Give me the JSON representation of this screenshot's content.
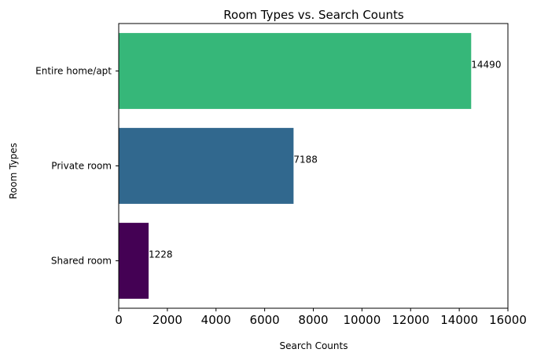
{
  "chart_data": {
    "type": "bar",
    "orientation": "horizontal",
    "title": "Room Types vs. Search Counts",
    "xlabel": "Search Counts",
    "ylabel": "Room Types",
    "xlim": [
      0,
      16000
    ],
    "xticks": [
      0,
      2000,
      4000,
      6000,
      8000,
      10000,
      12000,
      14000,
      16000
    ],
    "grid": false,
    "categories": [
      "Entire home/apt",
      "Private room",
      "Shared room"
    ],
    "values": [
      14490,
      7188,
      1228
    ],
    "data_labels": [
      "14490",
      "7188",
      "1228"
    ],
    "colors": [
      "#36b779",
      "#31688e",
      "#440154"
    ]
  }
}
